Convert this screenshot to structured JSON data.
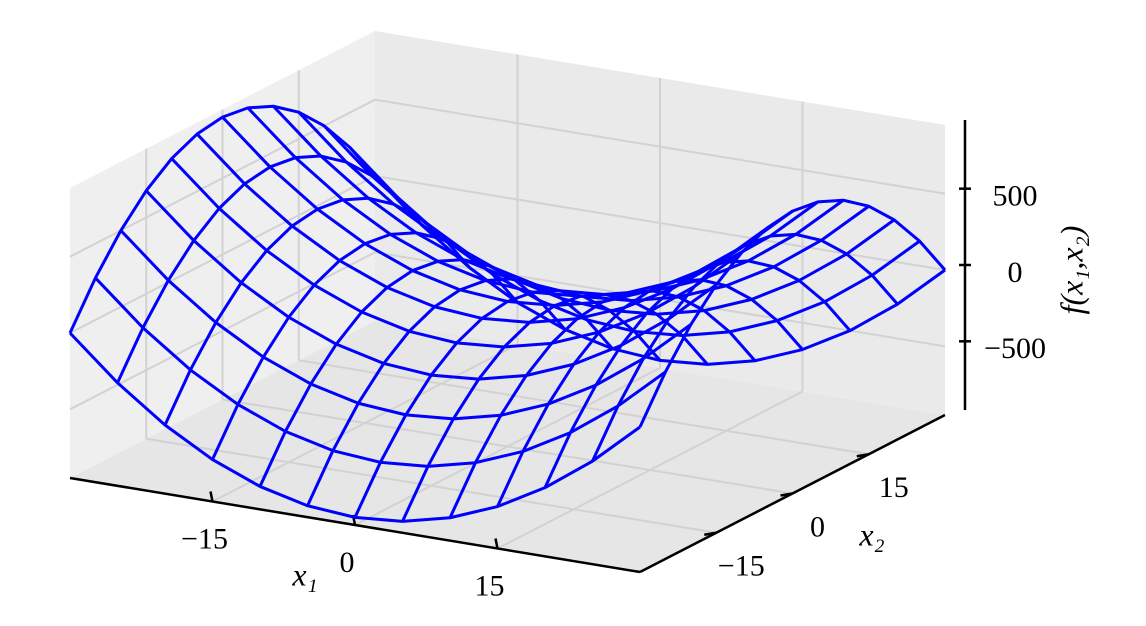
{
  "chart_data": {
    "type": "wireframe",
    "xlabel": "x₁",
    "ylabel": "x₂",
    "zlabel": "f(x₁,x₂)",
    "x": [
      -30,
      -25,
      -20,
      -15,
      -10,
      -5,
      0,
      5,
      10,
      15,
      20,
      25,
      30
    ],
    "y": [
      -30,
      -25,
      -20,
      -15,
      -10,
      -5,
      0,
      5,
      10,
      15,
      20,
      25,
      30
    ],
    "z": [
      [
        0,
        -275,
        -500,
        -675,
        -800,
        -875,
        -900,
        -875,
        -800,
        -675,
        -500,
        -275,
        0
      ],
      [
        275,
        0,
        -225,
        -400,
        -525,
        -600,
        -625,
        -600,
        -525,
        -400,
        -225,
        0,
        275
      ],
      [
        500,
        225,
        0,
        -175,
        -300,
        -375,
        -400,
        -375,
        -300,
        -175,
        0,
        225,
        500
      ],
      [
        675,
        400,
        175,
        0,
        -125,
        -200,
        -225,
        -200,
        -125,
        0,
        175,
        400,
        675
      ],
      [
        800,
        525,
        300,
        125,
        0,
        -75,
        -100,
        -75,
        0,
        125,
        300,
        525,
        800
      ],
      [
        875,
        600,
        375,
        200,
        75,
        0,
        -25,
        0,
        75,
        200,
        375,
        600,
        875
      ],
      [
        900,
        625,
        400,
        225,
        100,
        25,
        0,
        25,
        100,
        225,
        400,
        625,
        900
      ],
      [
        875,
        600,
        375,
        200,
        75,
        0,
        -25,
        0,
        75,
        200,
        375,
        600,
        875
      ],
      [
        800,
        525,
        300,
        125,
        0,
        -75,
        -100,
        -75,
        0,
        125,
        300,
        525,
        800
      ],
      [
        675,
        400,
        175,
        0,
        -125,
        -200,
        -225,
        -200,
        -125,
        0,
        175,
        400,
        675
      ],
      [
        500,
        225,
        0,
        -175,
        -300,
        -375,
        -400,
        -375,
        -300,
        -175,
        0,
        225,
        500
      ],
      [
        275,
        0,
        -225,
        -400,
        -525,
        -600,
        -625,
        -600,
        -525,
        -400,
        -225,
        0,
        275
      ],
      [
        0,
        -275,
        -500,
        -675,
        -800,
        -875,
        -900,
        -875,
        -800,
        -675,
        -500,
        -275,
        0
      ]
    ],
    "color": "#0000ff",
    "xlim": [
      -30,
      30
    ],
    "ylim": [
      -30,
      30
    ],
    "zlim": [
      -950,
      950
    ],
    "xticks": [
      {
        "value": -15,
        "label": "−15"
      },
      0,
      15
    ],
    "yticks": [
      {
        "value": -15,
        "label": "−15"
      },
      0,
      15
    ],
    "zticks": [
      {
        "value": -500,
        "label": "−500"
      },
      0,
      500
    ],
    "grid": true
  }
}
